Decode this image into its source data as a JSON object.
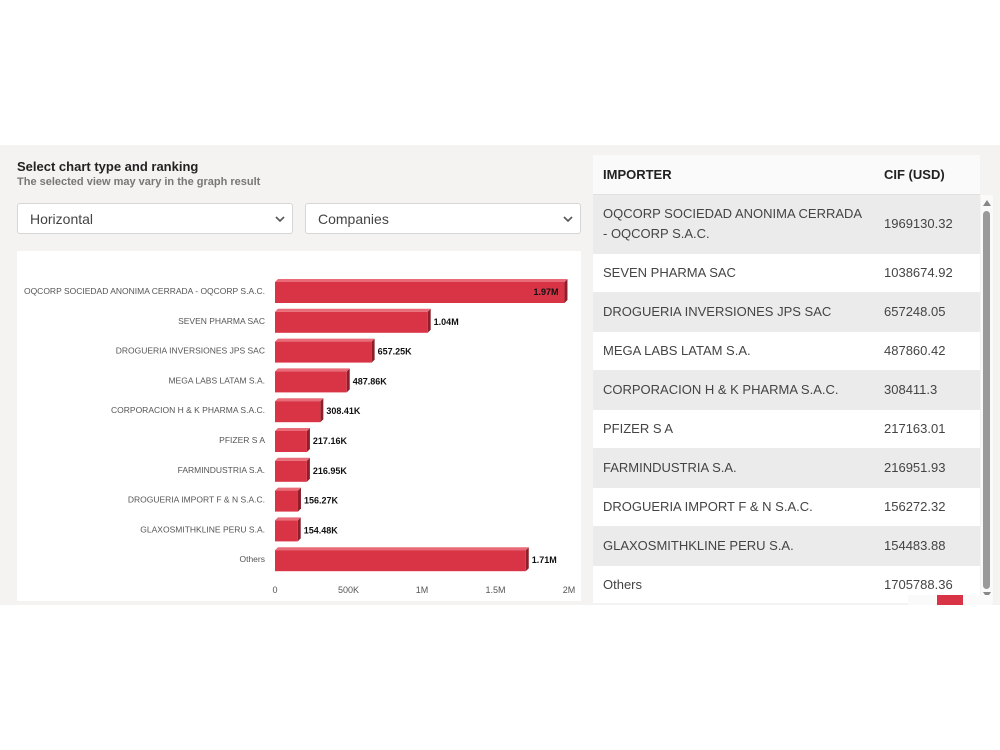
{
  "controls": {
    "title": "Select chart type and ranking",
    "subtitle": "The selected view may vary in the graph result",
    "chart_type_select": {
      "value": "Horizontal"
    },
    "ranking_select": {
      "value": "Companies"
    }
  },
  "table": {
    "headers": {
      "importer": "IMPORTER",
      "cif": "CIF (USD)"
    },
    "rows": [
      {
        "importer": "OQCORP SOCIEDAD ANONIMA CERRADA - OQCORP S.A.C.",
        "cif": "1969130.32"
      },
      {
        "importer": "SEVEN PHARMA SAC",
        "cif": "1038674.92"
      },
      {
        "importer": "DROGUERIA INVERSIONES JPS SAC",
        "cif": "657248.05"
      },
      {
        "importer": "MEGA LABS LATAM S.A.",
        "cif": "487860.42"
      },
      {
        "importer": "CORPORACION H & K PHARMA S.A.C.",
        "cif": "308411.3"
      },
      {
        "importer": "PFIZER S A",
        "cif": "217163.01"
      },
      {
        "importer": "FARMINDUSTRIA S.A.",
        "cif": "216951.93"
      },
      {
        "importer": "DROGUERIA IMPORT F & N S.A.C.",
        "cif": "156272.32"
      },
      {
        "importer": "GLAXOSMITHKLINE PERU S.A.",
        "cif": "154483.88"
      },
      {
        "importer": "Others",
        "cif": "1705788.36"
      }
    ]
  },
  "chart_data": {
    "type": "bar",
    "orientation": "horizontal",
    "categories": [
      "OQCORP SOCIEDAD ANONIMA CERRADA - OQCORP S.A.C.",
      "SEVEN PHARMA SAC",
      "DROGUERIA INVERSIONES JPS SAC",
      "MEGA LABS LATAM S.A.",
      "CORPORACION H & K PHARMA S.A.C.",
      "PFIZER S A",
      "FARMINDUSTRIA S.A.",
      "DROGUERIA IMPORT F & N S.A.C.",
      "GLAXOSMITHKLINE PERU S.A.",
      "Others"
    ],
    "values": [
      1969130.32,
      1038674.92,
      657248.05,
      487860.42,
      308411.3,
      217163.01,
      216951.93,
      156272.32,
      154483.88,
      1705788.36
    ],
    "value_labels": [
      "1.97M",
      "1.04M",
      "657.25K",
      "487.86K",
      "308.41K",
      "217.16K",
      "216.95K",
      "156.27K",
      "154.48K",
      "1.71M"
    ],
    "title": "",
    "xlabel": "",
    "ylabel": "",
    "xlim": [
      0,
      2000000
    ],
    "x_ticks": [
      0,
      500000,
      1000000,
      1500000,
      2000000
    ],
    "x_tick_labels": [
      "0",
      "500K",
      "1M",
      "1.5M",
      "2M"
    ],
    "grid": false,
    "legend": "none",
    "bar_color": "#d93445",
    "bar_shade_color": "#8e1f2a"
  },
  "colors": {
    "accent": "#d93445",
    "canvas": "#f5f3f2"
  },
  "icons": {
    "select_chevron": "chevron-down-icon",
    "scroll_up": "triangle-up-icon",
    "scroll_down": "triangle-down-icon"
  }
}
